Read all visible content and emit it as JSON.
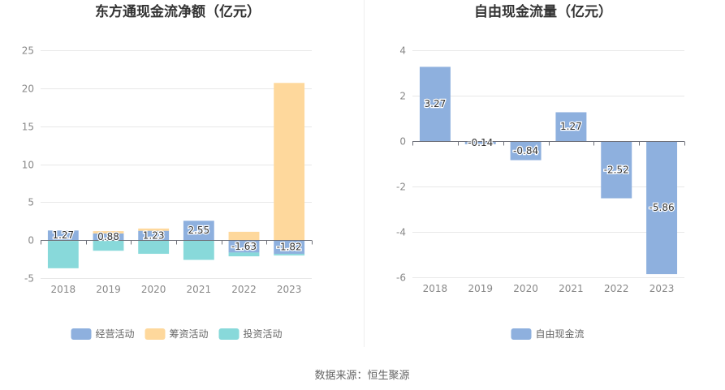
{
  "source_text": "数据来源：恒生聚源",
  "chart_data": [
    {
      "type": "bar",
      "title": "东方通现金流净额（亿元）",
      "categories": [
        "2018",
        "2019",
        "2020",
        "2021",
        "2022",
        "2023"
      ],
      "ylim": [
        -5,
        25
      ],
      "yticks": [
        -5,
        0,
        5,
        10,
        15,
        20,
        25
      ],
      "grid": true,
      "legend_position": "bottom",
      "stacked": true,
      "series": [
        {
          "name": "经营活动",
          "color": "#8eb0de",
          "values": [
            1.27,
            0.88,
            1.23,
            2.55,
            -1.63,
            -1.82
          ]
        },
        {
          "name": "筹资活动",
          "color": "#fed89c",
          "values": [
            -0.1,
            0.3,
            0.3,
            0.0,
            1.1,
            20.7
          ]
        },
        {
          "name": "投资活动",
          "color": "#88d9da",
          "values": [
            -3.6,
            -1.4,
            -1.8,
            -2.6,
            -0.5,
            -0.2
          ]
        }
      ],
      "data_labels": [
        "1.27",
        "0.88",
        "1.23",
        "2.55",
        "-1.63",
        "-1.82"
      ]
    },
    {
      "type": "bar",
      "title": "自由现金流量（亿元）",
      "categories": [
        "2018",
        "2019",
        "2020",
        "2021",
        "2022",
        "2023"
      ],
      "ylim": [
        -6,
        4
      ],
      "yticks": [
        -6,
        -4,
        -2,
        0,
        2,
        4
      ],
      "grid": true,
      "legend_position": "bottom",
      "series": [
        {
          "name": "自由现金流",
          "color": "#8eb0de",
          "values": [
            3.27,
            -0.14,
            -0.84,
            1.27,
            -2.52,
            -5.86
          ]
        }
      ],
      "data_labels": [
        "3.27",
        "-0.14",
        "-0.84",
        "1.27",
        "-2.52",
        "-5.86"
      ]
    }
  ]
}
